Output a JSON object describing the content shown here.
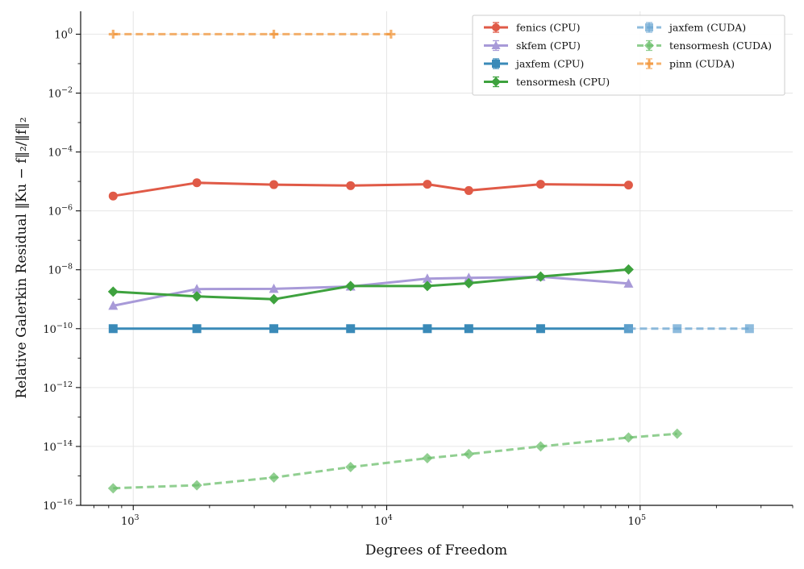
{
  "chart_data": {
    "type": "line",
    "title": "",
    "xlabel": "Degrees of Freedom",
    "ylabel": "Relative Galerkin Residual ‖Ku − f‖₂/‖f‖₂",
    "xscale": "log",
    "yscale": "log",
    "xlim": [
      620,
      400000
    ],
    "ylim": [
      1e-16,
      6
    ],
    "x_ticks": [
      {
        "value": 1000,
        "base": "10",
        "exp": "3"
      },
      {
        "value": 10000,
        "base": "10",
        "exp": "4"
      },
      {
        "value": 100000,
        "base": "10",
        "exp": "5"
      }
    ],
    "y_ticks": [
      {
        "value": 1,
        "base": "10",
        "exp": "0"
      },
      {
        "value": 0.01,
        "base": "10",
        "exp": "−2"
      },
      {
        "value": 0.0001,
        "base": "10",
        "exp": "−4"
      },
      {
        "value": 1e-06,
        "base": "10",
        "exp": "−6"
      },
      {
        "value": 1e-08,
        "base": "10",
        "exp": "−8"
      },
      {
        "value": 1e-10,
        "base": "10",
        "exp": "−10"
      },
      {
        "value": 1e-12,
        "base": "10",
        "exp": "−12"
      },
      {
        "value": 1e-14,
        "base": "10",
        "exp": "−14"
      },
      {
        "value": 1e-16,
        "base": "10",
        "exp": "−16"
      }
    ],
    "grid": true,
    "legend_position": "top-right",
    "series": [
      {
        "name": "fenics (CPU)",
        "color": "#e05a47",
        "marker": "circle",
        "dashed": false,
        "x": [
          833,
          1782,
          3587,
          7203,
          14466,
          21083,
          40500,
          90000
        ],
        "y": [
          3.2e-06,
          9e-06,
          7.8e-06,
          7.2e-06,
          8e-06,
          4.9e-06,
          8e-06,
          7.5e-06
        ]
      },
      {
        "name": "skfem (CPU)",
        "color": "#a89ad8",
        "marker": "triangle",
        "dashed": false,
        "x": [
          833,
          1782,
          3587,
          7203,
          14466,
          21083,
          40500,
          90000
        ],
        "y": [
          6e-10,
          2.2e-09,
          2.25e-09,
          2.7e-09,
          5e-09,
          5.3e-09,
          5.8e-09,
          3.4e-09
        ]
      },
      {
        "name": "jaxfem (CPU)",
        "color": "#3a8ab8",
        "marker": "square",
        "dashed": false,
        "x": [
          833,
          1782,
          3587,
          7203,
          14466,
          21083,
          40500,
          90000
        ],
        "y": [
          1e-10,
          1e-10,
          1e-10,
          1e-10,
          1e-10,
          1e-10,
          1e-10,
          1e-10
        ]
      },
      {
        "name": "tensormesh (CPU)",
        "color": "#3ea23e",
        "marker": "diamond",
        "dashed": false,
        "x": [
          833,
          1782,
          3587,
          7203,
          14466,
          21083,
          40500,
          90000
        ],
        "y": [
          1.8e-09,
          1.25e-09,
          1e-09,
          2.8e-09,
          2.8e-09,
          3.5e-09,
          5.9e-09,
          1.02e-08
        ]
      },
      {
        "name": "jaxfem (CUDA)",
        "color": "#6aa6d2",
        "marker": "square",
        "dashed": true,
        "x": [
          90000,
          140000,
          270000
        ],
        "y": [
          1e-10,
          1e-10,
          1e-10
        ]
      },
      {
        "name": "tensormesh (CUDA)",
        "color": "#6cbf6c",
        "marker": "diamond",
        "dashed": true,
        "x": [
          833,
          1782,
          3587,
          7203,
          14466,
          21083,
          40500,
          90000,
          140000
        ],
        "y": [
          3.8e-16,
          4.8e-16,
          8.8e-16,
          2e-15,
          4e-15,
          5.5e-15,
          1e-14,
          2e-14,
          2.7e-14
        ]
      },
      {
        "name": "pinn (CUDA)",
        "color": "#f2973c",
        "marker": "plus",
        "dashed": true,
        "x": [
          833,
          3587,
          10400
        ],
        "y": [
          1.0,
          1.0,
          1.0
        ]
      }
    ]
  }
}
